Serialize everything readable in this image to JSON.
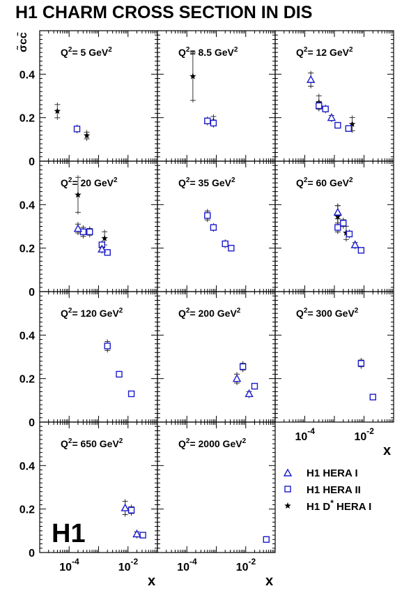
{
  "title": "H1 CHARM CROSS SECTION IN DIS",
  "y_axis_label": "σ̃cc̄",
  "x_axis_label": "x",
  "logo": "H1",
  "y_tick_labels": [
    "0",
    "0.2",
    "0.4"
  ],
  "x_tick_labels": [
    "10-4",
    "10-2"
  ],
  "colors": {
    "hera1": "#1a1acc",
    "hera2": "#1a1acc",
    "dstar": "#000000"
  },
  "legend": [
    {
      "marker": "triangle",
      "label": "H1 HERA I"
    },
    {
      "marker": "square",
      "label": "H1 HERA II"
    },
    {
      "marker": "star",
      "label": "H1 D* HERA I"
    }
  ],
  "chart_data": {
    "type": "scatter",
    "log_x": true,
    "xlim": [
      1e-05,
      0.1
    ],
    "ylim": [
      0,
      0.6
    ],
    "panels": [
      {
        "label": "Q2= 5 GeV2",
        "hera1": [],
        "hera2": [
          {
            "x": 0.000185,
            "y": 0.148,
            "err": 0.02
          }
        ],
        "dstar": [
          {
            "x": 3.98e-05,
            "y": 0.23,
            "err": 0.04
          },
          {
            "x": 0.000398,
            "y": 0.118,
            "err": 0.025
          }
        ]
      },
      {
        "label": "Q2= 8.5 GeV2",
        "hera1": [],
        "hera2": [
          {
            "x": 0.0005,
            "y": 0.185,
            "err": 0.02
          },
          {
            "x": 0.0008,
            "y": 0.175,
            "err": 0.02
          }
        ],
        "dstar": [
          {
            "x": 0.00016,
            "y": 0.39,
            "err": 0.12
          },
          {
            "x": 0.0008,
            "y": 0.185,
            "err": 0.03
          }
        ]
      },
      {
        "label": "Q2= 12 GeV2",
        "hera1": [
          {
            "x": 0.00016,
            "y": 0.375,
            "err": 0.04
          },
          {
            "x": 0.0008,
            "y": 0.2,
            "err": 0.02
          }
        ],
        "hera2": [
          {
            "x": 0.0003,
            "y": 0.255,
            "err": 0.025
          },
          {
            "x": 0.0005,
            "y": 0.24,
            "err": 0.02
          },
          {
            "x": 0.0013,
            "y": 0.165,
            "err": 0.015
          },
          {
            "x": 0.003,
            "y": 0.15,
            "err": 0.015
          }
        ],
        "dstar": [
          {
            "x": 0.0003,
            "y": 0.27,
            "err": 0.04
          },
          {
            "x": 0.004,
            "y": 0.17,
            "err": 0.04
          }
        ]
      },
      {
        "label": "Q2= 20 GeV2",
        "hera1": [
          {
            "x": 0.0002,
            "y": 0.29,
            "err": 0.03
          },
          {
            "x": 0.0013,
            "y": 0.195,
            "err": 0.02
          }
        ],
        "hera2": [
          {
            "x": 0.0003,
            "y": 0.275,
            "err": 0.03
          },
          {
            "x": 0.0005,
            "y": 0.275,
            "err": 0.025
          },
          {
            "x": 0.0013,
            "y": 0.215,
            "err": 0.02
          },
          {
            "x": 0.002,
            "y": 0.18,
            "err": 0.015
          }
        ],
        "dstar": [
          {
            "x": 0.0002,
            "y": 0.445,
            "err": 0.09
          },
          {
            "x": 0.0016,
            "y": 0.245,
            "err": 0.04
          }
        ]
      },
      {
        "label": "Q2= 35 GeV2",
        "hera1": [],
        "hera2": [
          {
            "x": 0.0005,
            "y": 0.35,
            "err": 0.03
          },
          {
            "x": 0.0008,
            "y": 0.295,
            "err": 0.02
          },
          {
            "x": 0.002,
            "y": 0.22,
            "err": 0.02
          },
          {
            "x": 0.0032,
            "y": 0.2,
            "err": 0.015
          }
        ],
        "dstar": []
      },
      {
        "label": "Q2= 60 GeV2",
        "hera1": [
          {
            "x": 0.0013,
            "y": 0.365,
            "err": 0.04
          },
          {
            "x": 0.005,
            "y": 0.215,
            "err": 0.02
          }
        ],
        "hera2": [
          {
            "x": 0.0013,
            "y": 0.295,
            "err": 0.03
          },
          {
            "x": 0.002,
            "y": 0.315,
            "err": 0.025
          },
          {
            "x": 0.0032,
            "y": 0.265,
            "err": 0.02
          },
          {
            "x": 0.008,
            "y": 0.19,
            "err": 0.015
          }
        ],
        "dstar": [
          {
            "x": 0.0013,
            "y": 0.345,
            "err": 0.06
          },
          {
            "x": 0.0025,
            "y": 0.27,
            "err": 0.04
          }
        ]
      },
      {
        "label": "Q2= 120 GeV2",
        "hera1": [],
        "hera2": [
          {
            "x": 0.002,
            "y": 0.35,
            "err": 0.03
          },
          {
            "x": 0.005,
            "y": 0.22,
            "err": 0.015
          },
          {
            "x": 0.013,
            "y": 0.13,
            "err": 0.01
          }
        ],
        "dstar": []
      },
      {
        "label": "Q2= 200 GeV2",
        "hera1": [
          {
            "x": 0.005,
            "y": 0.2,
            "err": 0.03
          },
          {
            "x": 0.013,
            "y": 0.13,
            "err": 0.02
          }
        ],
        "hera2": [
          {
            "x": 0.008,
            "y": 0.255,
            "err": 0.025
          },
          {
            "x": 0.02,
            "y": 0.165,
            "err": 0.015
          }
        ],
        "dstar": []
      },
      {
        "label": "Q2= 300 GeV2",
        "hera1": [],
        "hera2": [
          {
            "x": 0.008,
            "y": 0.27,
            "err": 0.025
          },
          {
            "x": 0.02,
            "y": 0.115,
            "err": 0.015
          }
        ],
        "dstar": []
      },
      {
        "label": "Q2= 650 GeV2",
        "hera1": [
          {
            "x": 0.008,
            "y": 0.205,
            "err": 0.04
          },
          {
            "x": 0.02,
            "y": 0.085,
            "err": 0.02
          }
        ],
        "hera2": [
          {
            "x": 0.013,
            "y": 0.195,
            "err": 0.025
          },
          {
            "x": 0.032,
            "y": 0.08,
            "err": 0.015
          }
        ],
        "dstar": []
      },
      {
        "label": "Q2= 2000 GeV2",
        "hera1": [],
        "hera2": [
          {
            "x": 0.05,
            "y": 0.06,
            "err": 0.015
          }
        ],
        "dstar": []
      }
    ]
  }
}
